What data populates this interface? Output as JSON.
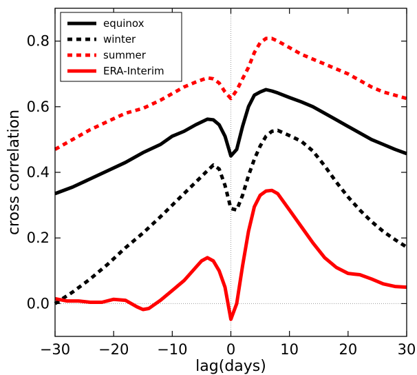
{
  "chart_data": {
    "type": "line",
    "title": "",
    "xlabel": "lag(days)",
    "ylabel": "cross correlation",
    "xlim": [
      -30,
      30
    ],
    "ylim": [
      -0.1,
      0.9
    ],
    "xticks": [
      -30,
      -20,
      -10,
      0,
      10,
      20,
      30
    ],
    "xtick_labels": [
      "−30",
      "−20",
      "−10",
      "0",
      "10",
      "20",
      "30"
    ],
    "yticks": [
      0.0,
      0.2,
      0.4,
      0.6,
      0.8
    ],
    "ytick_labels": [
      "0.0",
      "0.2",
      "0.4",
      "0.6",
      "0.8"
    ],
    "grid": false,
    "reference_lines": {
      "x": 0,
      "y": 0,
      "style": "dotted"
    },
    "legend_position": "top-left",
    "series": [
      {
        "name": "equinox",
        "color": "#000000",
        "dash": "solid",
        "x": [
          -30,
          -27,
          -24,
          -21,
          -18,
          -15,
          -12,
          -10,
          -8,
          -6,
          -4,
          -3,
          -2,
          -1,
          0,
          1,
          2,
          3,
          4,
          5,
          6,
          7,
          8,
          10,
          12,
          14,
          16,
          18,
          20,
          22,
          24,
          26,
          28,
          30
        ],
        "y": [
          0.335,
          0.355,
          0.38,
          0.405,
          0.43,
          0.46,
          0.485,
          0.51,
          0.525,
          0.545,
          0.562,
          0.56,
          0.545,
          0.51,
          0.45,
          0.47,
          0.54,
          0.6,
          0.635,
          0.645,
          0.652,
          0.648,
          0.642,
          0.628,
          0.615,
          0.6,
          0.58,
          0.56,
          0.54,
          0.52,
          0.5,
          0.485,
          0.47,
          0.457
        ]
      },
      {
        "name": "winter",
        "color": "#000000",
        "dash": "dotted",
        "x": [
          -30,
          -27,
          -24,
          -21,
          -18,
          -15,
          -12,
          -10,
          -8,
          -6,
          -4,
          -3,
          -2,
          -1,
          0,
          1,
          2,
          3,
          4,
          5,
          6,
          7,
          8,
          10,
          12,
          14,
          16,
          18,
          20,
          22,
          24,
          26,
          28,
          30
        ],
        "y": [
          0.0,
          0.035,
          0.075,
          0.12,
          0.17,
          0.215,
          0.265,
          0.3,
          0.335,
          0.37,
          0.405,
          0.422,
          0.41,
          0.36,
          0.29,
          0.285,
          0.33,
          0.39,
          0.44,
          0.48,
          0.51,
          0.525,
          0.528,
          0.512,
          0.495,
          0.465,
          0.42,
          0.37,
          0.325,
          0.285,
          0.25,
          0.22,
          0.195,
          0.172
        ]
      },
      {
        "name": "summer",
        "color": "#ff0000",
        "dash": "dotted",
        "x": [
          -30,
          -27,
          -24,
          -21,
          -18,
          -15,
          -12,
          -10,
          -8,
          -6,
          -4,
          -3,
          -2,
          -1,
          0,
          1,
          2,
          3,
          4,
          5,
          6,
          7,
          8,
          10,
          12,
          14,
          16,
          18,
          20,
          22,
          24,
          26,
          28,
          30
        ],
        "y": [
          0.47,
          0.5,
          0.53,
          0.555,
          0.58,
          0.595,
          0.62,
          0.64,
          0.66,
          0.675,
          0.688,
          0.685,
          0.672,
          0.645,
          0.625,
          0.65,
          0.685,
          0.72,
          0.765,
          0.795,
          0.808,
          0.808,
          0.8,
          0.78,
          0.76,
          0.745,
          0.73,
          0.715,
          0.7,
          0.68,
          0.66,
          0.645,
          0.635,
          0.625
        ]
      },
      {
        "name": "ERA-Interim",
        "color": "#ff0000",
        "dash": "solid",
        "x": [
          -30,
          -28,
          -26,
          -24,
          -22,
          -20,
          -18,
          -16,
          -15,
          -14,
          -12,
          -10,
          -8,
          -6,
          -5,
          -4,
          -3,
          -2,
          -1,
          0,
          1,
          2,
          3,
          4,
          5,
          6,
          7,
          8,
          10,
          12,
          14,
          16,
          18,
          20,
          21,
          22,
          24,
          26,
          28,
          30
        ],
        "y": [
          0.015,
          0.008,
          0.008,
          0.004,
          0.004,
          0.013,
          0.01,
          -0.01,
          -0.018,
          -0.015,
          0.01,
          0.04,
          0.07,
          0.11,
          0.13,
          0.14,
          0.13,
          0.1,
          0.05,
          -0.048,
          0.0,
          0.115,
          0.22,
          0.295,
          0.33,
          0.343,
          0.345,
          0.335,
          0.285,
          0.235,
          0.185,
          0.14,
          0.11,
          0.092,
          0.09,
          0.088,
          0.075,
          0.06,
          0.052,
          0.05
        ]
      }
    ]
  }
}
